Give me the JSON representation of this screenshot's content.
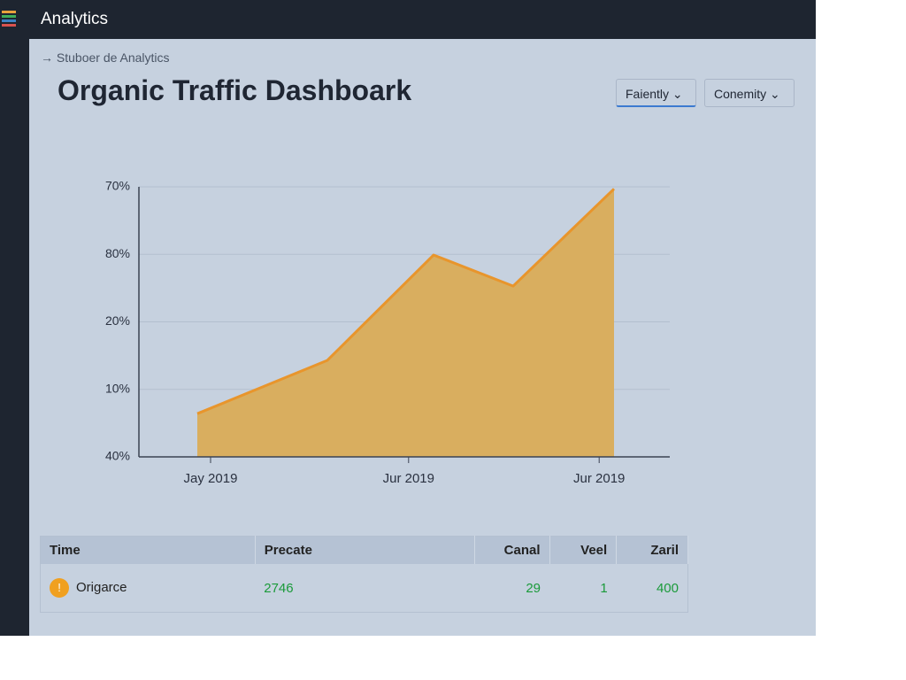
{
  "app": {
    "name": "Analytics"
  },
  "breadcrumb": "Stuboer de Analytics",
  "page_title": "Organic Traffic Dashboark",
  "dropdowns": [
    "Faiently",
    "Conemity"
  ],
  "chart_data": {
    "type": "area",
    "x": [
      1.1,
      3.55,
      5.55,
      7.05,
      8.95
    ],
    "values": [
      0.64,
      1.43,
      2.99,
      2.53,
      3.97
    ],
    "xlim": [
      0,
      10
    ],
    "xticks": [
      {
        "value": 1.35,
        "label": "Jay 2019"
      },
      {
        "value": 5.08,
        "label": "Jur 2019"
      },
      {
        "value": 8.67,
        "label": "Jur 2019"
      }
    ],
    "ylim": [
      0,
      4
    ],
    "yticks": [
      {
        "value": 4,
        "label": "70%"
      },
      {
        "value": 3,
        "label": "80%"
      },
      {
        "value": 2,
        "label": "20%"
      },
      {
        "value": 1,
        "label": "10%"
      },
      {
        "value": 0,
        "label": "40%"
      }
    ],
    "grid": true,
    "color": "#d9ae5f",
    "line_color": "#e8952c"
  },
  "table": {
    "columns": [
      "Time",
      "Precate",
      "Canal",
      "Veel",
      "Zaril"
    ],
    "rows": [
      [
        "Origarce",
        "2746",
        "29",
        "1",
        "400"
      ]
    ]
  }
}
